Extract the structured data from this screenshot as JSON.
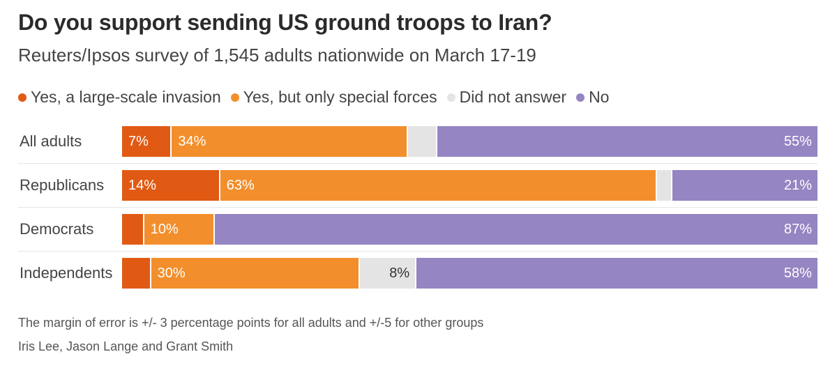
{
  "chart_data": {
    "type": "bar",
    "orientation": "horizontal",
    "stacked": true,
    "title": "Do you support sending US ground troops to Iran?",
    "subtitle": "Reuters/Ipsos survey of 1,545 adults nationwide on March 17-19",
    "categories": [
      "All adults",
      "Republicans",
      "Democrats",
      "Independents"
    ],
    "series": [
      {
        "name": "Yes, a large-scale invasion",
        "color": "#e05a14",
        "values": [
          7,
          14,
          3,
          4
        ],
        "labels": [
          "7%",
          "14%",
          "",
          ""
        ]
      },
      {
        "name": "Yes, but only special forces",
        "color": "#f28f2c",
        "values": [
          34,
          63,
          10,
          30
        ],
        "labels": [
          "34%",
          "63%",
          "10%",
          "30%"
        ]
      },
      {
        "name": "Did not answer",
        "color": "#e4e4e4",
        "values": [
          4,
          2,
          0,
          8
        ],
        "labels": [
          "",
          "",
          "",
          "8%"
        ]
      },
      {
        "name": "No",
        "color": "#9585c2",
        "values": [
          55,
          21,
          87,
          58
        ],
        "labels": [
          "55%",
          "21%",
          "87%",
          "58%"
        ]
      }
    ],
    "legend_position": "top-left",
    "xlim": [
      0,
      100
    ]
  },
  "footnote": "The margin of error is +/- 3 percentage points for all adults and +/-5 for other groups",
  "credit": "Iris Lee, Jason Lange and Grant Smith"
}
